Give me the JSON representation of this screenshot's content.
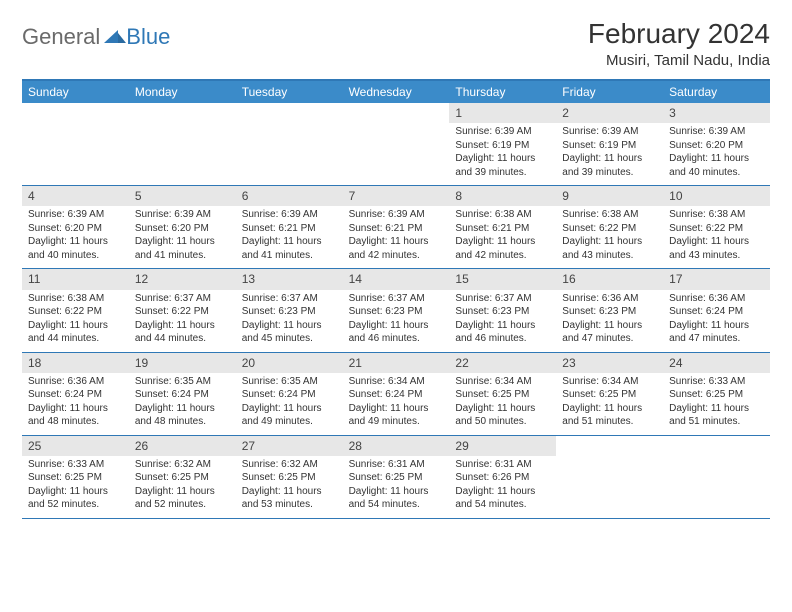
{
  "brand": {
    "general": "General",
    "blue": "Blue"
  },
  "title": "February 2024",
  "location": "Musiri, Tamil Nadu, India",
  "colors": {
    "header_bg": "#3b8bc9",
    "accent_line": "#2f78b6",
    "daynum_bg": "#e7e7e7",
    "text": "#333333",
    "logo_gray": "#6a6a6a",
    "logo_blue": "#2f78b6",
    "background": "#ffffff"
  },
  "typography": {
    "title_fontsize": 28,
    "location_fontsize": 15,
    "dow_fontsize": 12,
    "daynum_fontsize": 12,
    "cell_fontsize": 10
  },
  "days_of_week": [
    "Sunday",
    "Monday",
    "Tuesday",
    "Wednesday",
    "Thursday",
    "Friday",
    "Saturday"
  ],
  "weeks": [
    [
      {
        "n": "",
        "sr": "",
        "ss": "",
        "dl": ""
      },
      {
        "n": "",
        "sr": "",
        "ss": "",
        "dl": ""
      },
      {
        "n": "",
        "sr": "",
        "ss": "",
        "dl": ""
      },
      {
        "n": "",
        "sr": "",
        "ss": "",
        "dl": ""
      },
      {
        "n": "1",
        "sr": "Sunrise: 6:39 AM",
        "ss": "Sunset: 6:19 PM",
        "dl": "Daylight: 11 hours and 39 minutes."
      },
      {
        "n": "2",
        "sr": "Sunrise: 6:39 AM",
        "ss": "Sunset: 6:19 PM",
        "dl": "Daylight: 11 hours and 39 minutes."
      },
      {
        "n": "3",
        "sr": "Sunrise: 6:39 AM",
        "ss": "Sunset: 6:20 PM",
        "dl": "Daylight: 11 hours and 40 minutes."
      }
    ],
    [
      {
        "n": "4",
        "sr": "Sunrise: 6:39 AM",
        "ss": "Sunset: 6:20 PM",
        "dl": "Daylight: 11 hours and 40 minutes."
      },
      {
        "n": "5",
        "sr": "Sunrise: 6:39 AM",
        "ss": "Sunset: 6:20 PM",
        "dl": "Daylight: 11 hours and 41 minutes."
      },
      {
        "n": "6",
        "sr": "Sunrise: 6:39 AM",
        "ss": "Sunset: 6:21 PM",
        "dl": "Daylight: 11 hours and 41 minutes."
      },
      {
        "n": "7",
        "sr": "Sunrise: 6:39 AM",
        "ss": "Sunset: 6:21 PM",
        "dl": "Daylight: 11 hours and 42 minutes."
      },
      {
        "n": "8",
        "sr": "Sunrise: 6:38 AM",
        "ss": "Sunset: 6:21 PM",
        "dl": "Daylight: 11 hours and 42 minutes."
      },
      {
        "n": "9",
        "sr": "Sunrise: 6:38 AM",
        "ss": "Sunset: 6:22 PM",
        "dl": "Daylight: 11 hours and 43 minutes."
      },
      {
        "n": "10",
        "sr": "Sunrise: 6:38 AM",
        "ss": "Sunset: 6:22 PM",
        "dl": "Daylight: 11 hours and 43 minutes."
      }
    ],
    [
      {
        "n": "11",
        "sr": "Sunrise: 6:38 AM",
        "ss": "Sunset: 6:22 PM",
        "dl": "Daylight: 11 hours and 44 minutes."
      },
      {
        "n": "12",
        "sr": "Sunrise: 6:37 AM",
        "ss": "Sunset: 6:22 PM",
        "dl": "Daylight: 11 hours and 44 minutes."
      },
      {
        "n": "13",
        "sr": "Sunrise: 6:37 AM",
        "ss": "Sunset: 6:23 PM",
        "dl": "Daylight: 11 hours and 45 minutes."
      },
      {
        "n": "14",
        "sr": "Sunrise: 6:37 AM",
        "ss": "Sunset: 6:23 PM",
        "dl": "Daylight: 11 hours and 46 minutes."
      },
      {
        "n": "15",
        "sr": "Sunrise: 6:37 AM",
        "ss": "Sunset: 6:23 PM",
        "dl": "Daylight: 11 hours and 46 minutes."
      },
      {
        "n": "16",
        "sr": "Sunrise: 6:36 AM",
        "ss": "Sunset: 6:23 PM",
        "dl": "Daylight: 11 hours and 47 minutes."
      },
      {
        "n": "17",
        "sr": "Sunrise: 6:36 AM",
        "ss": "Sunset: 6:24 PM",
        "dl": "Daylight: 11 hours and 47 minutes."
      }
    ],
    [
      {
        "n": "18",
        "sr": "Sunrise: 6:36 AM",
        "ss": "Sunset: 6:24 PM",
        "dl": "Daylight: 11 hours and 48 minutes."
      },
      {
        "n": "19",
        "sr": "Sunrise: 6:35 AM",
        "ss": "Sunset: 6:24 PM",
        "dl": "Daylight: 11 hours and 48 minutes."
      },
      {
        "n": "20",
        "sr": "Sunrise: 6:35 AM",
        "ss": "Sunset: 6:24 PM",
        "dl": "Daylight: 11 hours and 49 minutes."
      },
      {
        "n": "21",
        "sr": "Sunrise: 6:34 AM",
        "ss": "Sunset: 6:24 PM",
        "dl": "Daylight: 11 hours and 49 minutes."
      },
      {
        "n": "22",
        "sr": "Sunrise: 6:34 AM",
        "ss": "Sunset: 6:25 PM",
        "dl": "Daylight: 11 hours and 50 minutes."
      },
      {
        "n": "23",
        "sr": "Sunrise: 6:34 AM",
        "ss": "Sunset: 6:25 PM",
        "dl": "Daylight: 11 hours and 51 minutes."
      },
      {
        "n": "24",
        "sr": "Sunrise: 6:33 AM",
        "ss": "Sunset: 6:25 PM",
        "dl": "Daylight: 11 hours and 51 minutes."
      }
    ],
    [
      {
        "n": "25",
        "sr": "Sunrise: 6:33 AM",
        "ss": "Sunset: 6:25 PM",
        "dl": "Daylight: 11 hours and 52 minutes."
      },
      {
        "n": "26",
        "sr": "Sunrise: 6:32 AM",
        "ss": "Sunset: 6:25 PM",
        "dl": "Daylight: 11 hours and 52 minutes."
      },
      {
        "n": "27",
        "sr": "Sunrise: 6:32 AM",
        "ss": "Sunset: 6:25 PM",
        "dl": "Daylight: 11 hours and 53 minutes."
      },
      {
        "n": "28",
        "sr": "Sunrise: 6:31 AM",
        "ss": "Sunset: 6:25 PM",
        "dl": "Daylight: 11 hours and 54 minutes."
      },
      {
        "n": "29",
        "sr": "Sunrise: 6:31 AM",
        "ss": "Sunset: 6:26 PM",
        "dl": "Daylight: 11 hours and 54 minutes."
      },
      {
        "n": "",
        "sr": "",
        "ss": "",
        "dl": ""
      },
      {
        "n": "",
        "sr": "",
        "ss": "",
        "dl": ""
      }
    ]
  ]
}
